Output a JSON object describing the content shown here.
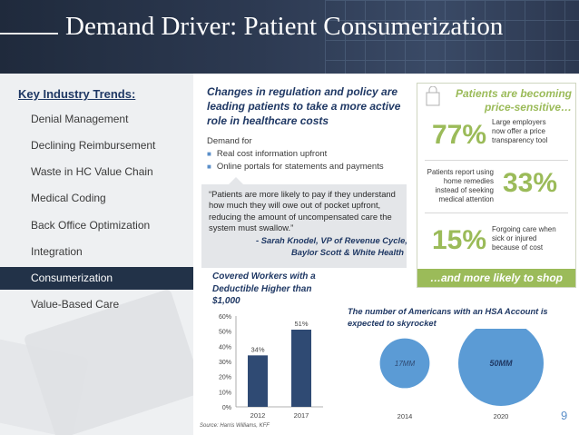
{
  "header": {
    "title": "Demand Driver: Patient Consumerization"
  },
  "sidebar": {
    "heading": "Key Industry Trends:",
    "items": [
      {
        "label": "Denial Management"
      },
      {
        "label": "Declining Reimbursement"
      },
      {
        "label": "Waste in HC Value Chain"
      },
      {
        "label": "Medical Coding"
      },
      {
        "label": "Back Office Optimization"
      },
      {
        "label": "Integration"
      },
      {
        "label": "Consumerization",
        "active": true
      },
      {
        "label": "Value-Based Care"
      }
    ]
  },
  "middle": {
    "title": "Changes in regulation and policy are leading patients to take a more active role in healthcare costs",
    "demand_label": "Demand for",
    "bullets": [
      "Real cost information upfront",
      "Online portals for statements and payments"
    ],
    "quote": {
      "text": "“Patients are more likely to pay if they understand how much they will owe out of pocket upfront, reducing the amount of uncompensated care the system must swallow.”",
      "attribution_line1": "-   Sarah Knodel, VP of Revenue Cycle,",
      "attribution_line2": "Baylor Scott & White Health"
    }
  },
  "panel": {
    "title_line1": "Patients are becoming",
    "title_line2": "price-sensitive…",
    "stats": [
      {
        "value": "77%",
        "text_lines": [
          "Large employers",
          "now offer a price",
          "transparency tool"
        ]
      },
      {
        "value": "33%",
        "text_lines": [
          "Patients report using",
          "home remedies",
          "instead of seeking",
          "medical attention"
        ]
      },
      {
        "value": "15%",
        "text_lines": [
          "Forgoing care when",
          "sick or injured",
          "because of cost"
        ]
      }
    ],
    "footer": "…and more likely to shop",
    "color": "#9bbb59"
  },
  "chart_data": [
    {
      "type": "bar",
      "title": "Covered Workers with a Deductible Higher than $1,000",
      "categories": [
        "2012",
        "2017"
      ],
      "values": [
        34,
        51
      ],
      "data_labels": [
        "34%",
        "51%"
      ],
      "y_ticks": [
        "0%",
        "10%",
        "20%",
        "30%",
        "40%",
        "50%",
        "60%"
      ],
      "ylim": [
        0,
        60
      ],
      "color": "#2f4a73"
    },
    {
      "type": "scatter",
      "title": "The number of Americans with an HSA Account is expected to skyrocket",
      "categories": [
        "2014",
        "2020"
      ],
      "values": [
        17,
        50
      ],
      "data_labels": [
        "17MM",
        "50MM"
      ],
      "color": "#5b9bd5"
    }
  ],
  "source": "Source: Harris Williams, KFF",
  "page_number": "9"
}
